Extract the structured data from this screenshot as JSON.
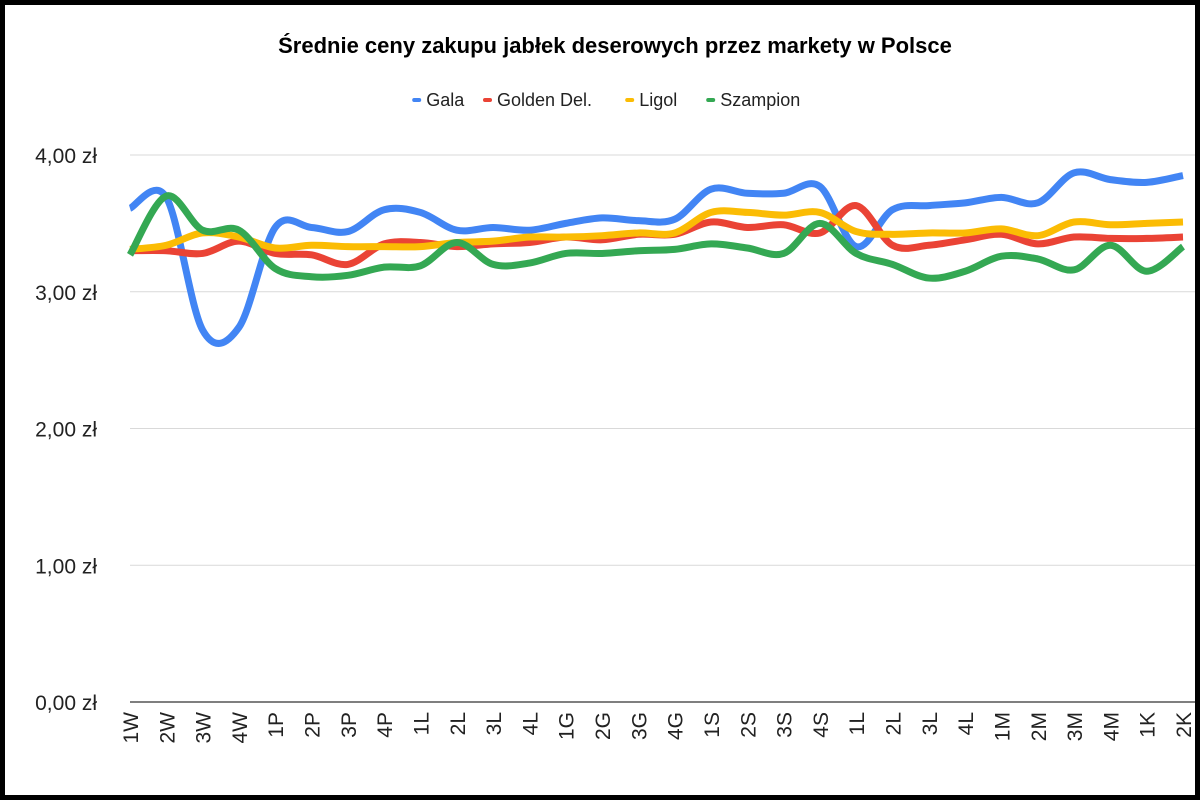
{
  "chart_data": {
    "type": "line",
    "title": "Średnie ceny zakupu jabłek deserowych przez markety w Polsce",
    "xlabel": "",
    "ylabel": "",
    "ylim": [
      0,
      4
    ],
    "yticks": [
      "0,00 zł",
      "1,00 zł",
      "2,00 zł",
      "3,00 zł",
      "4,00 zł"
    ],
    "ytick_values": [
      0,
      1,
      2,
      3,
      4
    ],
    "grid": true,
    "legend": "top",
    "smooth": true,
    "categories": [
      "1W",
      "2W",
      "3W",
      "4W",
      "1P",
      "2P",
      "3P",
      "4P",
      "1L",
      "2L",
      "3L",
      "4L",
      "1G",
      "2G",
      "3G",
      "4G",
      "1S",
      "2S",
      "3S",
      "4S",
      "1L",
      "2L",
      "3L",
      "4L",
      "1M",
      "2M",
      "3M",
      "4M",
      "1K",
      "2K"
    ],
    "series": [
      {
        "name": "Gala",
        "color": "#4285f4",
        "values": [
          3.61,
          3.69,
          2.72,
          2.74,
          3.47,
          3.47,
          3.44,
          3.6,
          3.58,
          3.45,
          3.47,
          3.45,
          3.5,
          3.54,
          3.52,
          3.53,
          3.75,
          3.72,
          3.72,
          3.77,
          3.33,
          3.6,
          3.63,
          3.65,
          3.69,
          3.65,
          3.87,
          3.82,
          3.8,
          3.85
        ]
      },
      {
        "name": "Golden Del.",
        "color": "#ea4335",
        "values": [
          3.3,
          3.3,
          3.28,
          3.37,
          3.28,
          3.27,
          3.2,
          3.35,
          3.36,
          3.33,
          3.35,
          3.36,
          3.4,
          3.38,
          3.42,
          3.42,
          3.51,
          3.47,
          3.49,
          3.43,
          3.63,
          3.34,
          3.34,
          3.38,
          3.42,
          3.35,
          3.4,
          3.39,
          3.39,
          3.4
        ]
      },
      {
        "name": "Ligol",
        "color": "#fbbc04",
        "values": [
          3.31,
          3.34,
          3.43,
          3.4,
          3.32,
          3.34,
          3.33,
          3.33,
          3.33,
          3.36,
          3.37,
          3.4,
          3.4,
          3.41,
          3.43,
          3.43,
          3.58,
          3.58,
          3.56,
          3.58,
          3.44,
          3.42,
          3.43,
          3.43,
          3.46,
          3.41,
          3.51,
          3.49,
          3.5,
          3.51
        ]
      },
      {
        "name": "Szampion",
        "color": "#34a853",
        "values": [
          3.27,
          3.7,
          3.45,
          3.45,
          3.17,
          3.11,
          3.12,
          3.18,
          3.19,
          3.36,
          3.2,
          3.21,
          3.28,
          3.28,
          3.3,
          3.31,
          3.35,
          3.32,
          3.28,
          3.5,
          3.28,
          3.2,
          3.1,
          3.15,
          3.26,
          3.24,
          3.16,
          3.34,
          3.15,
          3.33
        ]
      }
    ]
  }
}
